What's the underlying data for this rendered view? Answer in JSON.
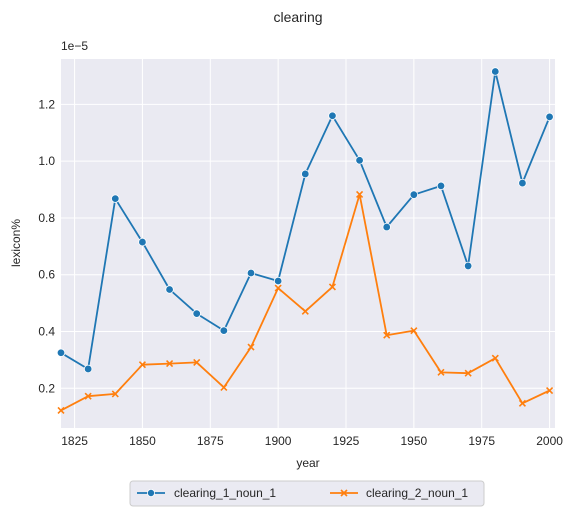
{
  "chart_data": {
    "type": "line",
    "title": "clearing",
    "xlabel": "year",
    "ylabel": "lexicon%",
    "y_scale_label": "1e−5",
    "xlim": [
      1820,
      2002
    ],
    "ylim": [
      0.06,
      1.36
    ],
    "xticks": [
      1825,
      1850,
      1875,
      1900,
      1925,
      1950,
      1975,
      2000
    ],
    "yticks": [
      0.2,
      0.4,
      0.6,
      0.8,
      1.0,
      1.2
    ],
    "ytick_labels": [
      "0.2",
      "0.4",
      "0.6",
      "0.8",
      "1.0",
      "1.2"
    ],
    "grid": true,
    "legend_position": "bottom-center",
    "x": [
      1820,
      1830,
      1840,
      1850,
      1860,
      1870,
      1880,
      1890,
      1900,
      1910,
      1920,
      1930,
      1940,
      1950,
      1960,
      1970,
      1980,
      1990,
      2000
    ],
    "series": [
      {
        "name": "clearing_1_noun_1",
        "color": "#1f77b4",
        "marker": "circle",
        "values": [
          0.325,
          0.268,
          0.868,
          0.715,
          0.548,
          0.463,
          0.403,
          0.606,
          0.578,
          0.955,
          1.16,
          1.003,
          0.768,
          0.882,
          0.913,
          0.631,
          1.316,
          0.923,
          1.156
        ]
      },
      {
        "name": "clearing_2_noun_1",
        "color": "#ff7f0e",
        "marker": "x",
        "values": [
          0.122,
          0.172,
          0.18,
          0.283,
          0.287,
          0.291,
          0.203,
          0.345,
          0.553,
          0.471,
          0.557,
          0.883,
          0.387,
          0.403,
          0.256,
          0.253,
          0.306,
          0.147,
          0.192
        ]
      }
    ]
  }
}
